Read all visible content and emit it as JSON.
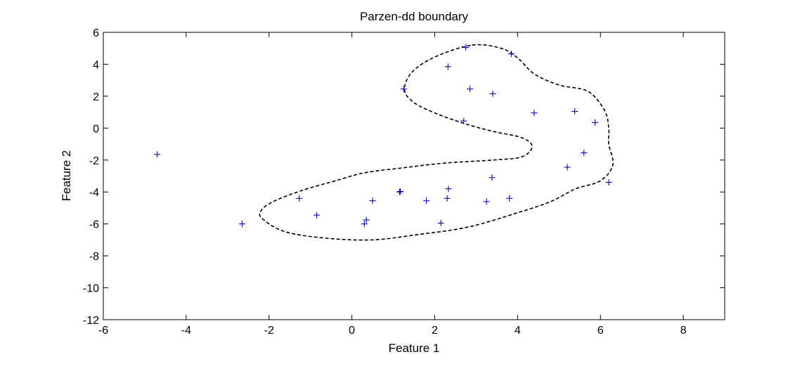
{
  "chart_data": {
    "type": "scatter",
    "title": "Parzen-dd boundary",
    "xlabel": "Feature 1",
    "ylabel": "Feature 2",
    "xlim": [
      -6,
      9
    ],
    "ylim": [
      -12,
      6
    ],
    "xticks": [
      -6,
      -4,
      -2,
      0,
      2,
      4,
      6,
      8
    ],
    "yticks": [
      6,
      4,
      2,
      0,
      -2,
      -4,
      -6,
      -8,
      -10,
      -12
    ],
    "grid": false,
    "marker": "+",
    "marker_color": "#0000cc",
    "boundary_color": "#000000",
    "points": [
      [
        -4.7,
        -1.65
      ],
      [
        -2.65,
        -6.0
      ],
      [
        -1.27,
        -4.4
      ],
      [
        -0.85,
        -5.45
      ],
      [
        0.3,
        -6.0
      ],
      [
        0.35,
        -5.75
      ],
      [
        0.5,
        -4.55
      ],
      [
        1.15,
        -4.0
      ],
      [
        1.17,
        -3.97
      ],
      [
        1.25,
        2.45
      ],
      [
        1.8,
        -4.55
      ],
      [
        2.15,
        -5.95
      ],
      [
        2.3,
        -4.4
      ],
      [
        2.32,
        3.85
      ],
      [
        2.33,
        -3.8
      ],
      [
        2.7,
        0.45
      ],
      [
        2.75,
        5.05
      ],
      [
        2.85,
        2.45
      ],
      [
        3.25,
        -4.6
      ],
      [
        3.38,
        -3.1
      ],
      [
        3.4,
        2.15
      ],
      [
        3.8,
        -4.4
      ],
      [
        3.85,
        4.65
      ],
      [
        4.4,
        0.95
      ],
      [
        5.2,
        -2.45
      ],
      [
        5.38,
        1.05
      ],
      [
        5.6,
        -1.55
      ],
      [
        5.87,
        0.35
      ],
      [
        6.2,
        -3.4
      ]
    ],
    "boundary": [
      [
        2.9,
        5.2
      ],
      [
        3.6,
        5.0
      ],
      [
        4.0,
        4.4
      ],
      [
        4.4,
        3.4
      ],
      [
        5.0,
        2.7
      ],
      [
        5.7,
        2.3
      ],
      [
        6.1,
        1.1
      ],
      [
        6.2,
        0.0
      ],
      [
        6.2,
        -1.0
      ],
      [
        6.3,
        -2.3
      ],
      [
        6.0,
        -3.3
      ],
      [
        5.4,
        -3.8
      ],
      [
        4.8,
        -4.6
      ],
      [
        4.0,
        -5.3
      ],
      [
        2.8,
        -6.2
      ],
      [
        1.5,
        -6.7
      ],
      [
        0.5,
        -7.0
      ],
      [
        -0.6,
        -6.9
      ],
      [
        -1.6,
        -6.5
      ],
      [
        -2.15,
        -5.7
      ],
      [
        -2.2,
        -5.2
      ],
      [
        -1.9,
        -4.6
      ],
      [
        -1.2,
        -3.9
      ],
      [
        -0.4,
        -3.3
      ],
      [
        0.3,
        -2.8
      ],
      [
        1.2,
        -2.5
      ],
      [
        2.2,
        -2.2
      ],
      [
        3.4,
        -2.0
      ],
      [
        4.1,
        -1.8
      ],
      [
        4.35,
        -1.15
      ],
      [
        4.1,
        -0.6
      ],
      [
        3.4,
        -0.2
      ],
      [
        2.7,
        0.3
      ],
      [
        2.0,
        0.95
      ],
      [
        1.5,
        1.6
      ],
      [
        1.27,
        2.4
      ],
      [
        1.45,
        3.5
      ],
      [
        2.0,
        4.45
      ],
      [
        2.9,
        5.2
      ]
    ]
  }
}
